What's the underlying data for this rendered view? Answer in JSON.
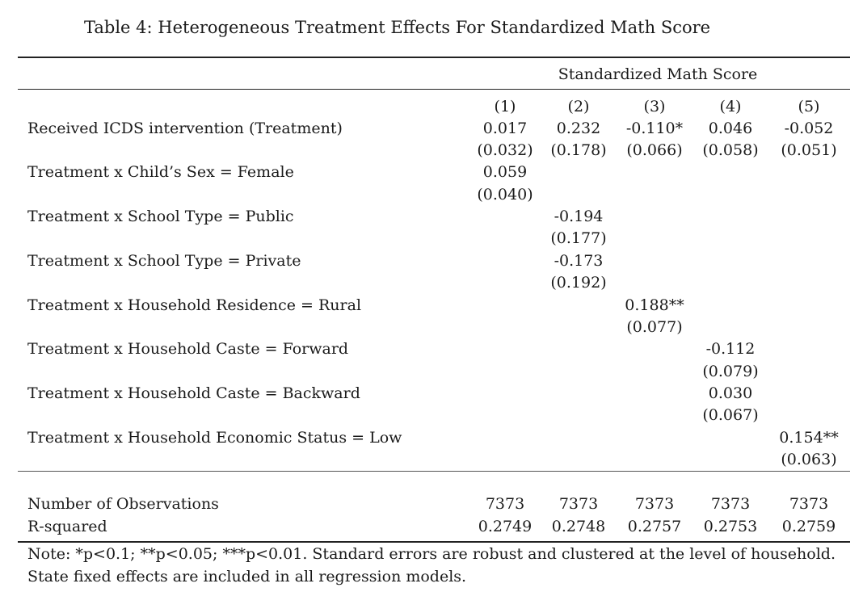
{
  "caption": "Table 4: Heterogeneous Treatment Effects For Standardized Math Score",
  "dependent_variable": "Standardized Math Score",
  "columns": [
    "(1)",
    "(2)",
    "(3)",
    "(4)",
    "(5)"
  ],
  "rows": [
    {
      "label": "Received ICDS intervention (Treatment)",
      "coef": [
        "0.017",
        "0.232",
        "-0.110*",
        "0.046",
        "-0.052"
      ],
      "se": [
        "(0.032)",
        "(0.178)",
        "(0.066)",
        "(0.058)",
        "(0.051)"
      ]
    },
    {
      "label": "Treatment x Child’s Sex = Female",
      "coef": [
        "0.059",
        "",
        "",
        "",
        ""
      ],
      "se": [
        "(0.040)",
        "",
        "",
        "",
        ""
      ]
    },
    {
      "label": "Treatment x School Type = Public",
      "coef": [
        "",
        "-0.194",
        "",
        "",
        ""
      ],
      "se": [
        "",
        "(0.177)",
        "",
        "",
        ""
      ]
    },
    {
      "label": "Treatment x School Type = Private",
      "coef": [
        "",
        "-0.173",
        "",
        "",
        ""
      ],
      "se": [
        "",
        "(0.192)",
        "",
        "",
        ""
      ]
    },
    {
      "label": "Treatment x Household Residence = Rural",
      "coef": [
        "",
        "",
        "0.188**",
        "",
        ""
      ],
      "se": [
        "",
        "",
        "(0.077)",
        "",
        ""
      ]
    },
    {
      "label": "Treatment x Household Caste = Forward",
      "coef": [
        "",
        "",
        "",
        "-0.112",
        ""
      ],
      "se": [
        "",
        "",
        "",
        "(0.079)",
        ""
      ]
    },
    {
      "label": "Treatment x Household Caste = Backward",
      "coef": [
        "",
        "",
        "",
        "0.030",
        ""
      ],
      "se": [
        "",
        "",
        "",
        "(0.067)",
        ""
      ]
    },
    {
      "label": "Treatment x Household Economic Status = Low",
      "coef": [
        "",
        "",
        "",
        "",
        "0.154**"
      ],
      "se": [
        "",
        "",
        "",
        "",
        "(0.063)"
      ]
    }
  ],
  "stats": [
    {
      "label": "Number of Observations",
      "values": [
        "7373",
        "7373",
        "7373",
        "7373",
        "7373"
      ]
    },
    {
      "label": "R-squared",
      "values": [
        "0.2749",
        "0.2748",
        "0.2757",
        "0.2753",
        "0.2759"
      ]
    }
  ],
  "note": "Note: *p<0.1; **p<0.05; ***p<0.01. Standard errors are robust and clustered at the level of household. State fixed effects are included in all regression models."
}
